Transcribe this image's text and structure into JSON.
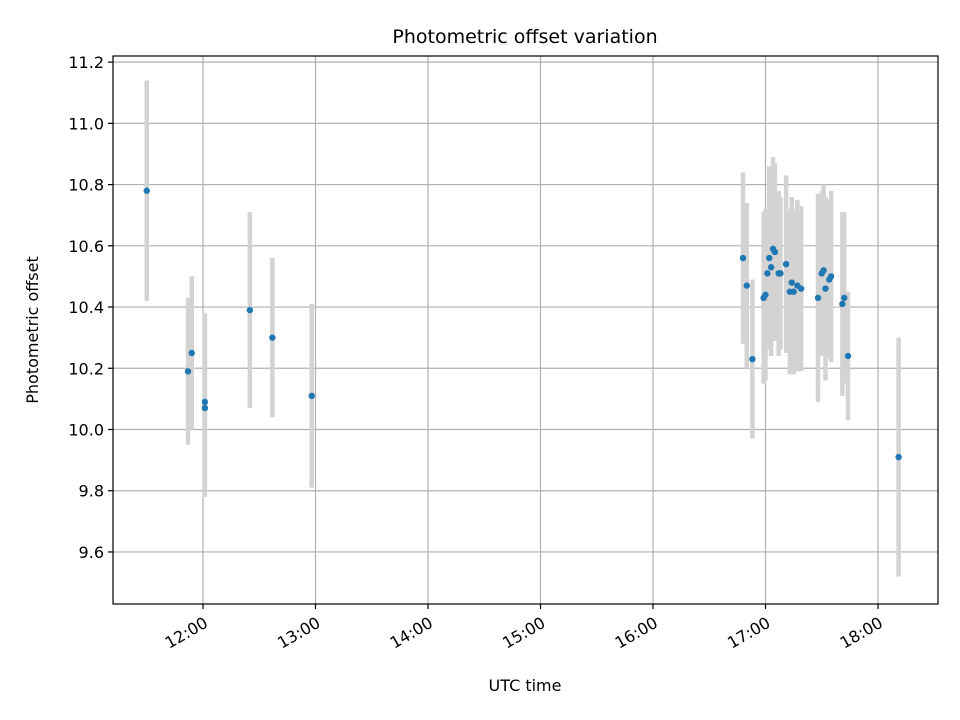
{
  "chart_data": {
    "type": "scatter",
    "title": "Photometric offset variation",
    "xlabel": "UTC time",
    "ylabel": "Photometric offset",
    "grid": true,
    "x_tick_labels": [
      "12:00",
      "13:00",
      "14:00",
      "15:00",
      "16:00",
      "17:00",
      "18:00"
    ],
    "x_ticks": [
      "12:00",
      "13:00",
      "14:00",
      "15:00",
      "16:00",
      "17:00",
      "18:00"
    ],
    "xlim": [
      "11:12",
      "18:32"
    ],
    "y_ticks": [
      9.6,
      9.8,
      10.0,
      10.2,
      10.4,
      10.6,
      10.8,
      11.0,
      11.2
    ],
    "ylim": [
      9.43,
      11.22
    ],
    "colors": {
      "marker": "#1f77b4",
      "errorbar": "#d3d3d3",
      "grid": "#b0b0b0"
    },
    "points": [
      {
        "x": "11:30",
        "y": 10.78,
        "err": 0.36
      },
      {
        "x": "11:52",
        "y": 10.19,
        "err": 0.24
      },
      {
        "x": "11:54",
        "y": 10.25,
        "err": 0.25
      },
      {
        "x": "12:01",
        "y": 10.09,
        "err": 0.29
      },
      {
        "x": "12:01",
        "y": 10.07,
        "err": 0.29
      },
      {
        "x": "12:25",
        "y": 10.39,
        "err": 0.32
      },
      {
        "x": "12:37",
        "y": 10.3,
        "err": 0.26
      },
      {
        "x": "12:58",
        "y": 10.11,
        "err": 0.3
      },
      {
        "x": "16:48",
        "y": 10.56,
        "err": 0.28
      },
      {
        "x": "16:50",
        "y": 10.47,
        "err": 0.27
      },
      {
        "x": "16:53",
        "y": 10.23,
        "err": 0.26
      },
      {
        "x": "16:59",
        "y": 10.43,
        "err": 0.28
      },
      {
        "x": "17:00",
        "y": 10.44,
        "err": 0.28
      },
      {
        "x": "17:01",
        "y": 10.51,
        "err": 0.21
      },
      {
        "x": "17:02",
        "y": 10.56,
        "err": 0.3
      },
      {
        "x": "17:03",
        "y": 10.53,
        "err": 0.29
      },
      {
        "x": "17:04",
        "y": 10.59,
        "err": 0.3
      },
      {
        "x": "17:05",
        "y": 10.58,
        "err": 0.29
      },
      {
        "x": "17:07",
        "y": 10.51,
        "err": 0.27
      },
      {
        "x": "17:08",
        "y": 10.51,
        "err": 0.25
      },
      {
        "x": "17:11",
        "y": 10.54,
        "err": 0.29
      },
      {
        "x": "17:13",
        "y": 10.45,
        "err": 0.27
      },
      {
        "x": "17:14",
        "y": 10.48,
        "err": 0.28
      },
      {
        "x": "17:15",
        "y": 10.45,
        "err": 0.27
      },
      {
        "x": "17:17",
        "y": 10.47,
        "err": 0.28
      },
      {
        "x": "17:19",
        "y": 10.46,
        "err": 0.27
      },
      {
        "x": "17:28",
        "y": 10.43,
        "err": 0.34
      },
      {
        "x": "17:30",
        "y": 10.51,
        "err": 0.27
      },
      {
        "x": "17:31",
        "y": 10.52,
        "err": 0.28
      },
      {
        "x": "17:32",
        "y": 10.46,
        "err": 0.3
      },
      {
        "x": "17:34",
        "y": 10.49,
        "err": 0.26
      },
      {
        "x": "17:35",
        "y": 10.5,
        "err": 0.28
      },
      {
        "x": "17:41",
        "y": 10.41,
        "err": 0.3
      },
      {
        "x": "17:42",
        "y": 10.43,
        "err": 0.28
      },
      {
        "x": "17:44",
        "y": 10.24,
        "err": 0.21
      },
      {
        "x": "18:11",
        "y": 9.91,
        "err": 0.39
      }
    ]
  }
}
